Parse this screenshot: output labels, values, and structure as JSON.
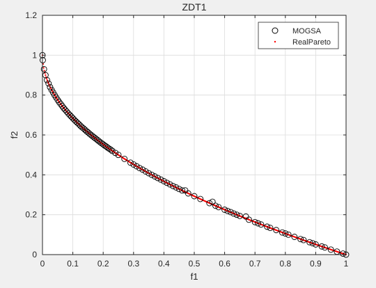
{
  "chart_data": {
    "type": "scatter",
    "title": "ZDT1",
    "xlabel": "f1",
    "ylabel": "f2",
    "xlim": [
      0,
      1
    ],
    "ylim": [
      0,
      1.2
    ],
    "xticks": [
      "0",
      "0.1",
      "0.2",
      "0.3",
      "0.4",
      "0.5",
      "0.6",
      "0.7",
      "0.8",
      "0.9",
      "1"
    ],
    "yticks": [
      "0",
      "0.2",
      "0.4",
      "0.6",
      "0.8",
      "1",
      "1.2"
    ],
    "grid": true,
    "legend_location": "top-right",
    "series": [
      {
        "name": "MOGSA",
        "marker": "open-circle",
        "color": "#000000",
        "points": [
          [
            0.0,
            1.0
          ],
          [
            0.001,
            0.975
          ],
          [
            0.005,
            0.93
          ],
          [
            0.01,
            0.9
          ],
          [
            0.015,
            0.875
          ],
          [
            0.02,
            0.858
          ],
          [
            0.025,
            0.84
          ],
          [
            0.03,
            0.826
          ],
          [
            0.035,
            0.813
          ],
          [
            0.04,
            0.8
          ],
          [
            0.045,
            0.788
          ],
          [
            0.05,
            0.776
          ],
          [
            0.055,
            0.765
          ],
          [
            0.06,
            0.755
          ],
          [
            0.065,
            0.745
          ],
          [
            0.07,
            0.735
          ],
          [
            0.075,
            0.726
          ],
          [
            0.08,
            0.717
          ],
          [
            0.085,
            0.708
          ],
          [
            0.09,
            0.7
          ],
          [
            0.095,
            0.692
          ],
          [
            0.1,
            0.684
          ],
          [
            0.105,
            0.676
          ],
          [
            0.11,
            0.668
          ],
          [
            0.115,
            0.661
          ],
          [
            0.12,
            0.654
          ],
          [
            0.125,
            0.646
          ],
          [
            0.13,
            0.639
          ],
          [
            0.135,
            0.633
          ],
          [
            0.14,
            0.626
          ],
          [
            0.145,
            0.619
          ],
          [
            0.15,
            0.613
          ],
          [
            0.155,
            0.606
          ],
          [
            0.16,
            0.6
          ],
          [
            0.165,
            0.594
          ],
          [
            0.17,
            0.588
          ],
          [
            0.175,
            0.582
          ],
          [
            0.18,
            0.576
          ],
          [
            0.185,
            0.57
          ],
          [
            0.19,
            0.564
          ],
          [
            0.195,
            0.558
          ],
          [
            0.2,
            0.553
          ],
          [
            0.205,
            0.547
          ],
          [
            0.21,
            0.542
          ],
          [
            0.215,
            0.536
          ],
          [
            0.22,
            0.531
          ],
          [
            0.225,
            0.526
          ],
          [
            0.23,
            0.52
          ],
          [
            0.24,
            0.51
          ],
          [
            0.25,
            0.5
          ],
          [
            0.27,
            0.48
          ],
          [
            0.29,
            0.461
          ],
          [
            0.3,
            0.452
          ],
          [
            0.31,
            0.443
          ],
          [
            0.32,
            0.434
          ],
          [
            0.33,
            0.426
          ],
          [
            0.34,
            0.417
          ],
          [
            0.35,
            0.408
          ],
          [
            0.36,
            0.4
          ],
          [
            0.37,
            0.392
          ],
          [
            0.38,
            0.384
          ],
          [
            0.39,
            0.376
          ],
          [
            0.4,
            0.368
          ],
          [
            0.41,
            0.36
          ],
          [
            0.42,
            0.352
          ],
          [
            0.43,
            0.344
          ],
          [
            0.44,
            0.337
          ],
          [
            0.45,
            0.329
          ],
          [
            0.46,
            0.322
          ],
          [
            0.47,
            0.322
          ],
          [
            0.48,
            0.307
          ],
          [
            0.5,
            0.293
          ],
          [
            0.52,
            0.279
          ],
          [
            0.55,
            0.258
          ],
          [
            0.56,
            0.265
          ],
          [
            0.57,
            0.245
          ],
          [
            0.58,
            0.238
          ],
          [
            0.6,
            0.225
          ],
          [
            0.61,
            0.219
          ],
          [
            0.62,
            0.213
          ],
          [
            0.63,
            0.206
          ],
          [
            0.64,
            0.2
          ],
          [
            0.65,
            0.194
          ],
          [
            0.67,
            0.191
          ],
          [
            0.68,
            0.175
          ],
          [
            0.7,
            0.163
          ],
          [
            0.71,
            0.157
          ],
          [
            0.72,
            0.151
          ],
          [
            0.74,
            0.14
          ],
          [
            0.75,
            0.134
          ],
          [
            0.77,
            0.123
          ],
          [
            0.79,
            0.111
          ],
          [
            0.8,
            0.106
          ],
          [
            0.81,
            0.1
          ],
          [
            0.83,
            0.089
          ],
          [
            0.85,
            0.078
          ],
          [
            0.86,
            0.073
          ],
          [
            0.88,
            0.062
          ],
          [
            0.89,
            0.057
          ],
          [
            0.9,
            0.051
          ],
          [
            0.92,
            0.041
          ],
          [
            0.93,
            0.036
          ],
          [
            0.95,
            0.025
          ],
          [
            0.97,
            0.015
          ],
          [
            0.99,
            0.005
          ],
          [
            1.0,
            0.0
          ]
        ]
      },
      {
        "name": "RealPareto",
        "marker": "dot",
        "color": "#ff0000",
        "function": "1 - sqrt(f1)",
        "x_range": [
          0,
          1
        ]
      }
    ]
  }
}
